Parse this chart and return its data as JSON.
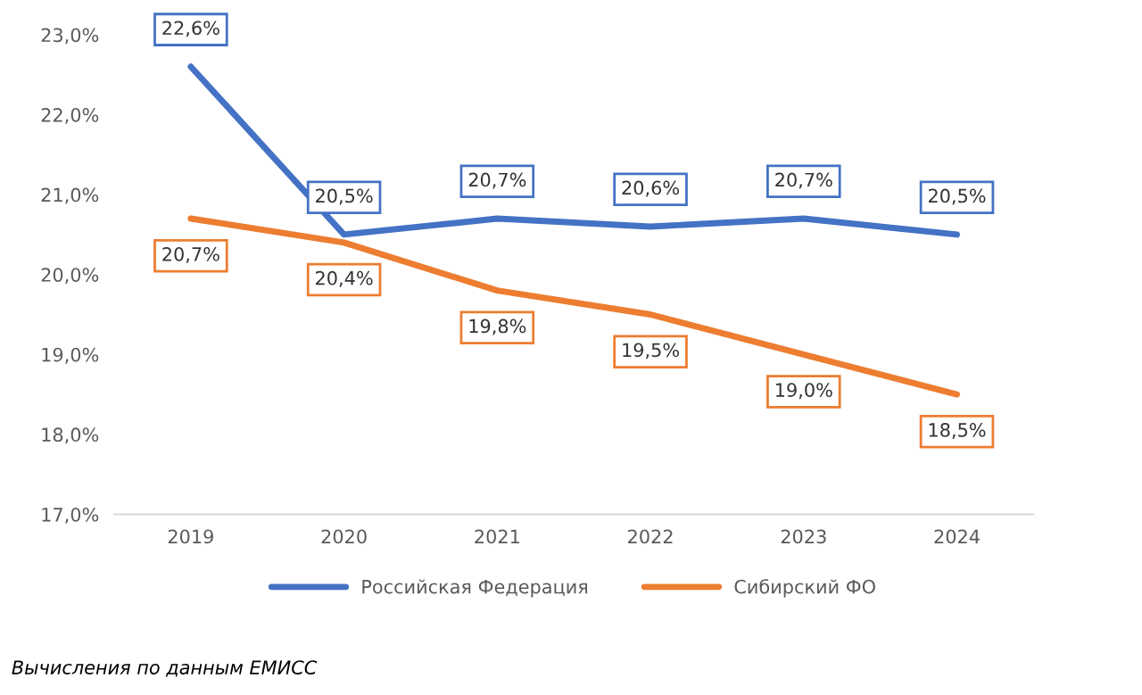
{
  "chart_data": {
    "type": "line",
    "categories": [
      "2019",
      "2020",
      "2021",
      "2022",
      "2023",
      "2024"
    ],
    "series": [
      {
        "name": "Российская Федерация",
        "color": "#4472c4",
        "values": [
          22.6,
          20.5,
          20.7,
          20.6,
          20.7,
          20.5
        ],
        "value_labels": [
          "22,6%",
          "20,5%",
          "20,7%",
          "20,6%",
          "20,7%",
          "20,5%"
        ]
      },
      {
        "name": "Сибирский ФО",
        "color": "#ed7d31",
        "values": [
          20.7,
          20.4,
          19.8,
          19.5,
          19.0,
          18.5
        ],
        "value_labels": [
          "20,7%",
          "20,4%",
          "19,8%",
          "19,5%",
          "19,0%",
          "18,5%"
        ]
      }
    ],
    "ylim": [
      17,
      23
    ],
    "yticks": [
      {
        "value": 17,
        "label": "17,0%"
      },
      {
        "value": 18,
        "label": "18,0%"
      },
      {
        "value": 19,
        "label": "19,0%"
      },
      {
        "value": 20,
        "label": "20,0%"
      },
      {
        "value": 21,
        "label": "21,0%"
      },
      {
        "value": 22,
        "label": "22,0%"
      },
      {
        "value": 23,
        "label": "23,0%"
      }
    ],
    "grid": false,
    "legend": "bottom",
    "marker": "none",
    "line_style": "solid",
    "annotations": [
      "Вычисления по данным ЕМИСС"
    ]
  }
}
